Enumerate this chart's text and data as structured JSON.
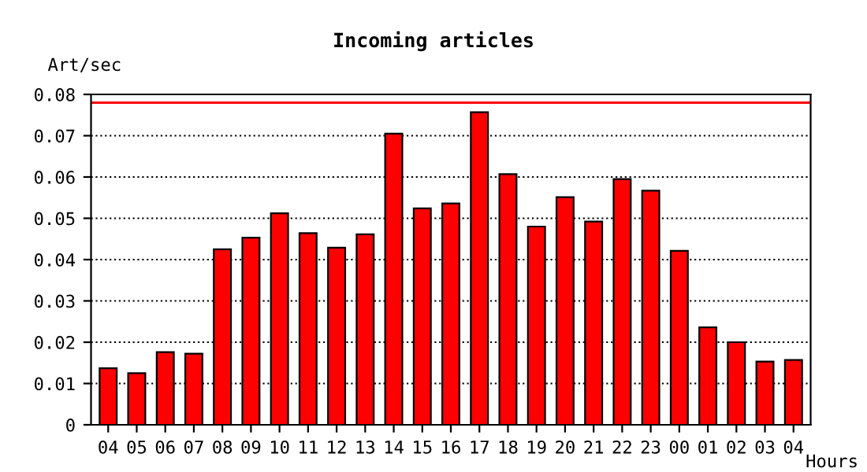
{
  "chart_data": {
    "type": "bar",
    "title": "Incoming articles",
    "ylabel": "Art/sec",
    "xlabel": "Hours",
    "categories": [
      "04",
      "05",
      "06",
      "07",
      "08",
      "09",
      "10",
      "11",
      "12",
      "13",
      "14",
      "15",
      "16",
      "17",
      "18",
      "19",
      "20",
      "21",
      "22",
      "23",
      "00",
      "01",
      "02",
      "03",
      "04"
    ],
    "values": [
      0.0137,
      0.0125,
      0.0176,
      0.0172,
      0.0425,
      0.0453,
      0.0512,
      0.0464,
      0.0429,
      0.0461,
      0.0705,
      0.0524,
      0.0536,
      0.0757,
      0.0607,
      0.048,
      0.0551,
      0.0492,
      0.0595,
      0.0567,
      0.0421,
      0.0236,
      0.02,
      0.0153,
      0.0157
    ],
    "color": "#ff0000",
    "ylim": [
      0,
      0.08
    ],
    "yticks": [
      0,
      0.01,
      0.02,
      0.03,
      0.04,
      0.05,
      0.06,
      0.07,
      0.08
    ],
    "ref_lines": [
      {
        "axis": "y",
        "value": 0.078,
        "color": "#ff0000"
      }
    ],
    "grid": "y",
    "line_style": "dotted"
  }
}
